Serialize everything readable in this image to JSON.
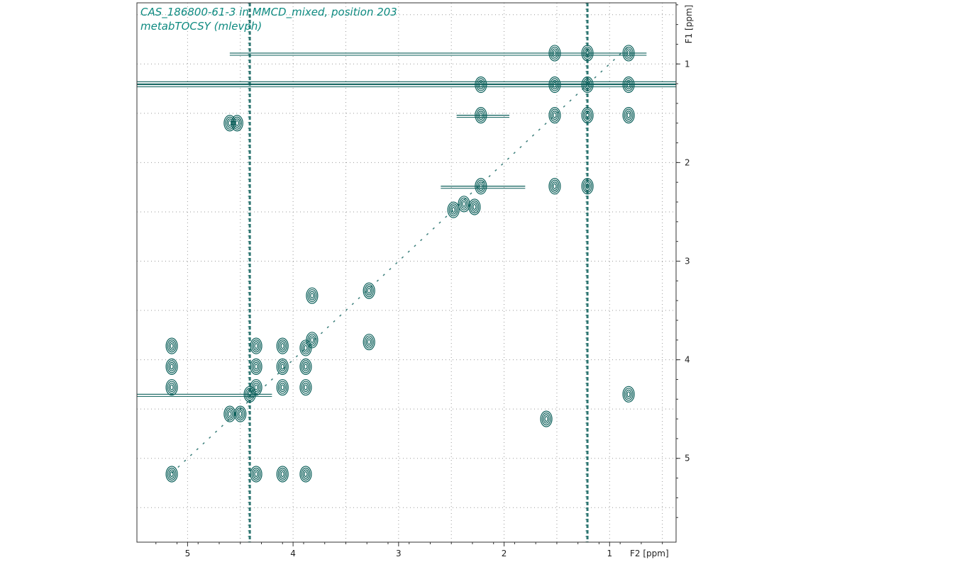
{
  "chart_data": {
    "type": "contour-2d-nmr",
    "title_lines": [
      "CAS_186800-61-3 in MMCD_mixed, position 203",
      "metabTOCSY (mlevph)"
    ],
    "x_axis": {
      "label": "F2 [ppm]",
      "range": [
        5.48,
        0.37
      ],
      "ticks": [
        5,
        4,
        3,
        2,
        1
      ],
      "reversed": true
    },
    "y_axis": {
      "label": "F1 [ppm]",
      "range": [
        0.38,
        5.85
      ],
      "ticks": [
        1,
        2,
        3,
        4,
        5
      ],
      "reversed": true,
      "position": "right"
    },
    "grid": true,
    "contour_color": "#0b5f5a",
    "diagonal": [
      5.15,
      0.82
    ],
    "vertical_streaks": [
      4.41,
      1.21
    ],
    "horizontal_streaks": [
      {
        "y": 1.18,
        "x_from": 5.48,
        "x_to": 0.37
      },
      {
        "y": 1.21,
        "x_from": 5.48,
        "x_to": 0.37
      },
      {
        "y": 0.89,
        "x_from": 4.6,
        "x_to": 0.65
      },
      {
        "y": 4.35,
        "x_from": 5.48,
        "x_to": 4.2
      },
      {
        "y": 2.24,
        "x_from": 2.6,
        "x_to": 1.8
      },
      {
        "y": 1.52,
        "x_from": 2.45,
        "x_to": 1.95
      }
    ],
    "peaks": [
      {
        "x": 1.21,
        "y": 1.21
      },
      {
        "x": 1.52,
        "y": 1.21
      },
      {
        "x": 2.22,
        "y": 1.21
      },
      {
        "x": 0.82,
        "y": 1.21
      },
      {
        "x": 1.21,
        "y": 0.89
      },
      {
        "x": 1.52,
        "y": 0.89
      },
      {
        "x": 0.82,
        "y": 0.89
      },
      {
        "x": 1.21,
        "y": 1.52
      },
      {
        "x": 1.52,
        "y": 1.52
      },
      {
        "x": 2.22,
        "y": 1.52
      },
      {
        "x": 0.82,
        "y": 1.52
      },
      {
        "x": 1.21,
        "y": 2.24
      },
      {
        "x": 1.52,
        "y": 2.24
      },
      {
        "x": 2.22,
        "y": 2.24
      },
      {
        "x": 2.38,
        "y": 2.42
      },
      {
        "x": 2.48,
        "y": 2.48
      },
      {
        "x": 2.28,
        "y": 2.45
      },
      {
        "x": 3.82,
        "y": 3.35
      },
      {
        "x": 3.28,
        "y": 3.3
      },
      {
        "x": 3.82,
        "y": 3.8
      },
      {
        "x": 3.88,
        "y": 3.88
      },
      {
        "x": 3.28,
        "y": 3.82
      },
      {
        "x": 5.15,
        "y": 3.86
      },
      {
        "x": 5.15,
        "y": 4.07
      },
      {
        "x": 5.15,
        "y": 4.28
      },
      {
        "x": 4.35,
        "y": 3.86
      },
      {
        "x": 4.35,
        "y": 4.07
      },
      {
        "x": 4.35,
        "y": 4.28
      },
      {
        "x": 4.1,
        "y": 3.86
      },
      {
        "x": 4.1,
        "y": 4.07
      },
      {
        "x": 4.1,
        "y": 4.28
      },
      {
        "x": 3.88,
        "y": 4.07
      },
      {
        "x": 3.88,
        "y": 4.28
      },
      {
        "x": 4.41,
        "y": 4.35
      },
      {
        "x": 4.6,
        "y": 4.55
      },
      {
        "x": 4.5,
        "y": 4.55
      },
      {
        "x": 5.15,
        "y": 5.16
      },
      {
        "x": 4.35,
        "y": 5.16
      },
      {
        "x": 4.1,
        "y": 5.16
      },
      {
        "x": 3.88,
        "y": 5.16
      },
      {
        "x": 4.6,
        "y": 1.6
      },
      {
        "x": 4.53,
        "y": 1.6
      },
      {
        "x": 1.6,
        "y": 4.6
      },
      {
        "x": 0.82,
        "y": 4.35
      }
    ]
  }
}
